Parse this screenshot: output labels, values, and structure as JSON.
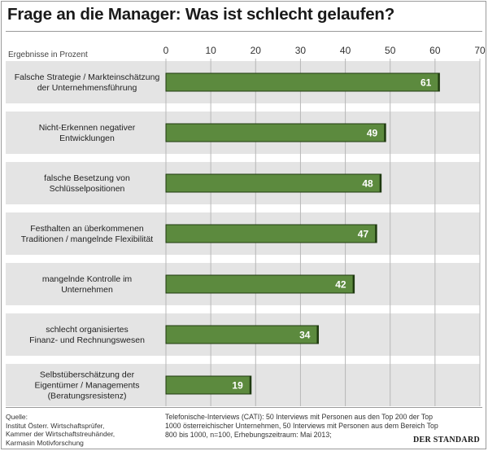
{
  "title": "Frage an die Manager: Was ist schlecht gelaufen?",
  "axis_note": "Ergebnisse in Prozent",
  "colors": {
    "bar": "#5c8a3e",
    "bar_border": "#1f3a10",
    "row_bg": "#e4e4e4",
    "grid": "#b8b8b8"
  },
  "chart_data": {
    "type": "bar",
    "orientation": "horizontal",
    "categories": [
      [
        "Falsche Strategie / Markteinschätzung",
        "der Unternehmensführung"
      ],
      [
        "Nicht-Erkennen negativer",
        "Entwicklungen"
      ],
      [
        "falsche Besetzung von",
        "Schlüsselpositionen"
      ],
      [
        "Festhalten an überkommenen",
        "Traditionen / mangelnde Flexibilität"
      ],
      [
        "mangelnde Kontrolle im",
        "Unternehmen"
      ],
      [
        "schlecht organisiertes",
        "Finanz- und Rechnungswesen"
      ],
      [
        "Selbstüberschätzung der",
        "Eigentümer / Managements",
        "(Beratungsresistenz)"
      ]
    ],
    "values": [
      61,
      49,
      48,
      47,
      42,
      34,
      19
    ],
    "xlim": [
      0,
      70
    ],
    "xticks": [
      0,
      10,
      20,
      30,
      40,
      50,
      60,
      70
    ],
    "xlabel": "Ergebnisse in Prozent",
    "grid": true,
    "axis_position": "top"
  },
  "footer": {
    "source_lines": [
      "Quelle:",
      "Institut Österr. Wirtschaftsprüfer,",
      "Kammer der Wirtschaftstreuhänder,",
      "Karmasin Motivforschung"
    ],
    "method_text": "Telefonische-Interviews (CATI): 50 Interviews mit Personen aus den Top 200 der Top 1000 österreichischer Unternehmen, 50 Interviews mit Personen aus dem Bereich Top 800 bis 1000, n=100, Erhebungszeitraum: Mai 2013;",
    "logo": "DER STANDARD"
  }
}
